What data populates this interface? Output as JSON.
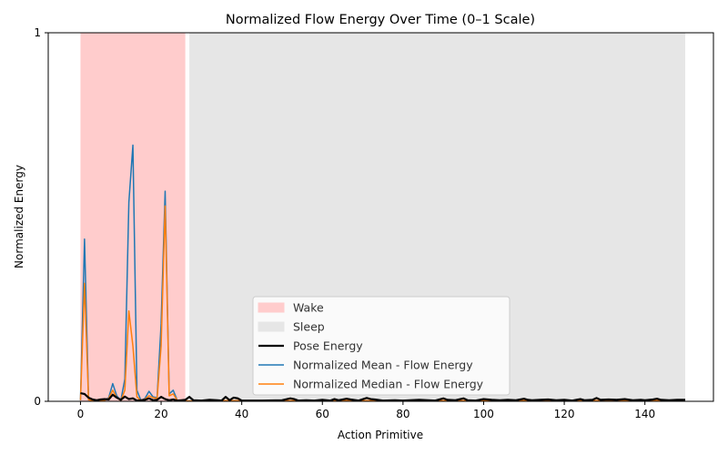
{
  "chart_data": {
    "type": "line",
    "title": "Normalized Flow Energy Over Time (0–1 Scale)",
    "xlabel": "Action Primitive",
    "ylabel": "Normalized Energy",
    "xlim": [
      -8,
      157
    ],
    "ylim": [
      0,
      1
    ],
    "xticks": [
      0,
      20,
      40,
      60,
      80,
      100,
      120,
      140
    ],
    "yticks": [
      0,
      1
    ],
    "grid": false,
    "legend_position": "lower-center",
    "regions": [
      {
        "name": "Wake",
        "x_start": 0,
        "x_end": 26,
        "color": "#ffcccc"
      },
      {
        "name": "Sleep",
        "x_start": 27,
        "x_end": 150,
        "color": "#e6e6e6"
      }
    ],
    "legend": [
      "Wake",
      "Sleep",
      "Pose Energy",
      "Normalized Mean - Flow Energy",
      "Normalized Median - Flow Energy"
    ],
    "series": [
      {
        "name": "Pose Energy",
        "color": "#000000",
        "points": [
          [
            0,
            0.022
          ],
          [
            1,
            0.02
          ],
          [
            2,
            0.01
          ],
          [
            3,
            0.005
          ],
          [
            4,
            0.003
          ],
          [
            5,
            0.005
          ],
          [
            6,
            0.006
          ],
          [
            7,
            0.005
          ],
          [
            8,
            0.018
          ],
          [
            9,
            0.01
          ],
          [
            10,
            0.004
          ],
          [
            11,
            0.013
          ],
          [
            12,
            0.006
          ],
          [
            13,
            0.008
          ],
          [
            14,
            0.002
          ],
          [
            15,
            0.003
          ],
          [
            16,
            0.004
          ],
          [
            17,
            0.008
          ],
          [
            18,
            0.003
          ],
          [
            19,
            0.004
          ],
          [
            20,
            0.012
          ],
          [
            21,
            0.006
          ],
          [
            22,
            0.003
          ],
          [
            23,
            0.005
          ],
          [
            24,
            0.002
          ],
          [
            25,
            0.003
          ],
          [
            26,
            0.004
          ],
          [
            27,
            0.012
          ],
          [
            28,
            0.003
          ],
          [
            30,
            0.002
          ],
          [
            32,
            0.004
          ],
          [
            34,
            0.003
          ],
          [
            35,
            0.002
          ],
          [
            36,
            0.012
          ],
          [
            37,
            0.003
          ],
          [
            38,
            0.01
          ],
          [
            39,
            0.008
          ],
          [
            40,
            0.002
          ],
          [
            45,
            0.002
          ],
          [
            50,
            0.003
          ],
          [
            52,
            0.008
          ],
          [
            53,
            0.006
          ],
          [
            54,
            0.002
          ],
          [
            56,
            0.003
          ],
          [
            58,
            0.002
          ],
          [
            60,
            0.004
          ],
          [
            62,
            0.002
          ],
          [
            63,
            0.006
          ],
          [
            64,
            0.003
          ],
          [
            66,
            0.007
          ],
          [
            67,
            0.005
          ],
          [
            69,
            0.002
          ],
          [
            71,
            0.009
          ],
          [
            72,
            0.006
          ],
          [
            73,
            0.005
          ],
          [
            75,
            0.002
          ],
          [
            78,
            0.003
          ],
          [
            80,
            0.002
          ],
          [
            84,
            0.004
          ],
          [
            88,
            0.002
          ],
          [
            90,
            0.008
          ],
          [
            91,
            0.004
          ],
          [
            93,
            0.003
          ],
          [
            95,
            0.008
          ],
          [
            96,
            0.003
          ],
          [
            98,
            0.002
          ],
          [
            100,
            0.006
          ],
          [
            102,
            0.004
          ],
          [
            104,
            0.003
          ],
          [
            106,
            0.004
          ],
          [
            108,
            0.003
          ],
          [
            110,
            0.007
          ],
          [
            111,
            0.004
          ],
          [
            112,
            0.003
          ],
          [
            114,
            0.004
          ],
          [
            116,
            0.005
          ],
          [
            118,
            0.003
          ],
          [
            120,
            0.004
          ],
          [
            122,
            0.002
          ],
          [
            124,
            0.006
          ],
          [
            125,
            0.003
          ],
          [
            127,
            0.004
          ],
          [
            128,
            0.009
          ],
          [
            129,
            0.004
          ],
          [
            131,
            0.005
          ],
          [
            133,
            0.004
          ],
          [
            135,
            0.006
          ],
          [
            137,
            0.003
          ],
          [
            139,
            0.004
          ],
          [
            140,
            0.003
          ],
          [
            142,
            0.005
          ],
          [
            143,
            0.007
          ],
          [
            144,
            0.004
          ],
          [
            146,
            0.003
          ],
          [
            148,
            0.004
          ],
          [
            150,
            0.004
          ]
        ]
      },
      {
        "name": "Normalized Mean - Flow Energy",
        "color": "#1f77b4",
        "points": [
          [
            0,
            0.003
          ],
          [
            1,
            0.44
          ],
          [
            2,
            0.005
          ],
          [
            3,
            0.002
          ],
          [
            4,
            0.001
          ],
          [
            5,
            0.002
          ],
          [
            6,
            0.003
          ],
          [
            7,
            0.01
          ],
          [
            8,
            0.048
          ],
          [
            9,
            0.015
          ],
          [
            10,
            0.002
          ],
          [
            11,
            0.06
          ],
          [
            12,
            0.54
          ],
          [
            13,
            0.695
          ],
          [
            14,
            0.03
          ],
          [
            15,
            0.002
          ],
          [
            16,
            0.008
          ],
          [
            17,
            0.027
          ],
          [
            18,
            0.012
          ],
          [
            19,
            0.01
          ],
          [
            20,
            0.21
          ],
          [
            21,
            0.57
          ],
          [
            22,
            0.02
          ],
          [
            23,
            0.03
          ],
          [
            24,
            0.003
          ],
          [
            25,
            0.001
          ],
          [
            26,
            0.002
          ],
          [
            27,
            0.001
          ],
          [
            30,
            0.002
          ],
          [
            40,
            0.002
          ],
          [
            60,
            0.002
          ],
          [
            80,
            0.002
          ],
          [
            100,
            0.002
          ],
          [
            120,
            0.002
          ],
          [
            140,
            0.002
          ],
          [
            150,
            0.002
          ]
        ]
      },
      {
        "name": "Normalized Median - Flow Energy",
        "color": "#ff7f0e",
        "points": [
          [
            0,
            0.003
          ],
          [
            1,
            0.32
          ],
          [
            2,
            0.004
          ],
          [
            3,
            0.002
          ],
          [
            4,
            0.001
          ],
          [
            5,
            0.002
          ],
          [
            6,
            0.003
          ],
          [
            7,
            0.008
          ],
          [
            8,
            0.03
          ],
          [
            9,
            0.01
          ],
          [
            10,
            0.002
          ],
          [
            11,
            0.03
          ],
          [
            12,
            0.245
          ],
          [
            13,
            0.15
          ],
          [
            14,
            0.012
          ],
          [
            15,
            0.002
          ],
          [
            16,
            0.006
          ],
          [
            17,
            0.015
          ],
          [
            18,
            0.01
          ],
          [
            19,
            0.008
          ],
          [
            20,
            0.15
          ],
          [
            21,
            0.53
          ],
          [
            22,
            0.015
          ],
          [
            23,
            0.02
          ],
          [
            24,
            0.003
          ],
          [
            25,
            0.001
          ],
          [
            26,
            0.002
          ],
          [
            27,
            0.001
          ],
          [
            30,
            0.002
          ],
          [
            40,
            0.002
          ],
          [
            60,
            0.002
          ],
          [
            80,
            0.002
          ],
          [
            100,
            0.002
          ],
          [
            120,
            0.002
          ],
          [
            140,
            0.002
          ],
          [
            150,
            0.002
          ]
        ]
      }
    ]
  }
}
